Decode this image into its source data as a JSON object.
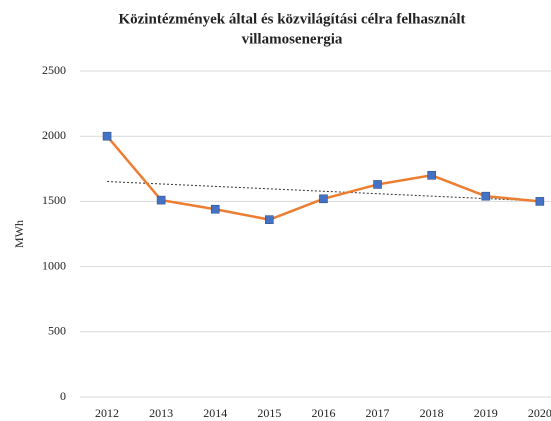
{
  "chart_data": {
    "type": "line",
    "title": [
      "Közintézmények által és közvilágítási célra felhasznált",
      "villamosenergia"
    ],
    "y_label": "MWh",
    "categories": [
      "2012",
      "2013",
      "2014",
      "2015",
      "2016",
      "2017",
      "2018",
      "2019",
      "2020"
    ],
    "series": [
      {
        "name": "MWh",
        "color": "#ed7d31",
        "marker_color": "#4472c4",
        "values": [
          2000,
          1510,
          1440,
          1360,
          1520,
          1630,
          1700,
          1540,
          1500
        ]
      }
    ],
    "ylim": [
      0,
      2500
    ],
    "yticks": [
      0,
      500,
      1000,
      1500,
      2000,
      2500
    ],
    "grid": true,
    "trendline": true
  }
}
